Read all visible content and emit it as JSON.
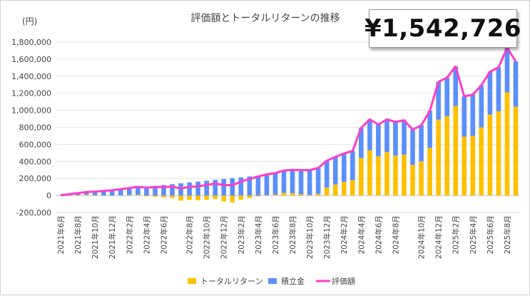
{
  "chart_data": {
    "type": "bar",
    "title": "評価額とトータルリターンの推移",
    "ylabel": "(円)",
    "ylim": [
      -200000,
      1800000
    ],
    "yticks": [
      -200000,
      0,
      200000,
      400000,
      600000,
      800000,
      1000000,
      1200000,
      1400000,
      1600000,
      1800000
    ],
    "ytick_labels": [
      "-200,000",
      "0",
      "200,000",
      "400,000",
      "600,000",
      "800,000",
      "1,000,000",
      "1,200,000",
      "1,400,000",
      "1,600,000",
      "1,800,000"
    ],
    "grid": true,
    "legend_position": "bottom",
    "stacked": true,
    "x_tick_labels": [
      "2021年6月",
      "2021年8月",
      "2021年10月",
      "2021年12月",
      "2022年2月",
      "2022年4月",
      "2022年6月",
      "2022年8月",
      "2022年10月",
      "2022年12月",
      "2023年2月",
      "2023年4月",
      "2023年6月",
      "2023年8月",
      "2023年10月",
      "2023年12月",
      "2024年2月",
      "2024年4月",
      "2024年6月",
      "2024年8月",
      "2024年10月",
      "2024年12月",
      "2025年2月",
      "2025年4月",
      "2025年6月",
      "2025年8月"
    ],
    "series": [
      {
        "name": "トータルリターン",
        "kind": "bar",
        "color": "#ffc000",
        "values": [
          0,
          2000,
          5000,
          8000,
          3000,
          1000,
          -2000,
          1000,
          5000,
          8000,
          -10000,
          -15000,
          -22000,
          -30000,
          -60000,
          -52000,
          -55000,
          -50000,
          -42000,
          -70000,
          -82000,
          -50000,
          -30000,
          -10000,
          5000,
          10000,
          30000,
          28000,
          15000,
          5000,
          20000,
          95000,
          130000,
          160000,
          180000,
          440000,
          530000,
          460000,
          510000,
          470000,
          480000,
          360000,
          400000,
          560000,
          890000,
          930000,
          1050000,
          690000,
          700000,
          800000,
          950000,
          990000,
          1210000,
          1040000
        ]
      },
      {
        "name": "積立金",
        "kind": "bar",
        "color": "#5b8ff9",
        "values": [
          3000,
          13000,
          23000,
          33000,
          43000,
          53000,
          63000,
          73000,
          83000,
          93000,
          103000,
          113000,
          123000,
          133000,
          143000,
          153000,
          163000,
          173000,
          183000,
          193000,
          203000,
          213000,
          223000,
          233000,
          243000,
          253000,
          263000,
          273000,
          283000,
          293000,
          303000,
          313000,
          323000,
          333000,
          343000,
          353000,
          363000,
          373000,
          383000,
          393000,
          403000,
          413000,
          423000,
          433000,
          443000,
          453000,
          463000,
          473000,
          483000,
          493000,
          503000,
          513000,
          523000,
          533000
        ]
      },
      {
        "name": "評価額",
        "kind": "line",
        "color": "#ff3dc8",
        "values": [
          3000,
          15000,
          28000,
          41000,
          46000,
          54000,
          61000,
          74000,
          88000,
          101000,
          93000,
          98000,
          101000,
          103000,
          83000,
          101000,
          108000,
          123000,
          141000,
          123000,
          121000,
          163000,
          193000,
          223000,
          248000,
          263000,
          293000,
          301000,
          298000,
          298000,
          323000,
          408000,
          453000,
          493000,
          523000,
          793000,
          893000,
          833000,
          893000,
          863000,
          883000,
          773000,
          823000,
          993000,
          1333000,
          1383000,
          1513000,
          1163000,
          1183000,
          1293000,
          1453000,
          1503000,
          1733000,
          1573000
        ]
      }
    ],
    "total_label": "¥1,542,726"
  }
}
